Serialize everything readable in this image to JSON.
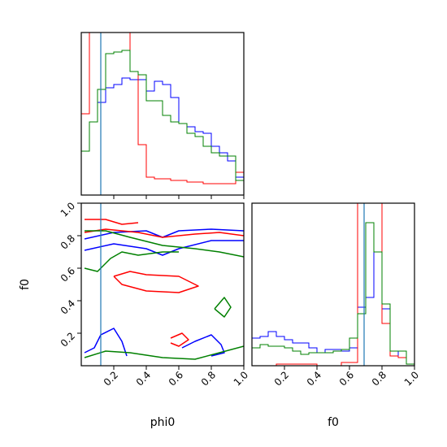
{
  "chart_data": {
    "type": "corner",
    "parameters": [
      "phi0",
      "f0"
    ],
    "xlabels": {
      "phi0": "phi0",
      "f0": "f0"
    },
    "ylabels": {
      "f0": "f0"
    },
    "axis_range": {
      "phi0": [
        0,
        1
      ],
      "f0": [
        0,
        1
      ]
    },
    "ticks": [
      0.2,
      0.4,
      0.6,
      0.8,
      1.0
    ],
    "tick_labels": [
      "0.2",
      "0.4",
      "0.6",
      "0.8",
      "1.0"
    ],
    "truth": {
      "phi0": 0.12,
      "f0": 0.69
    },
    "colors": {
      "blue": "#0000ff",
      "red": "#ff0000",
      "green": "#008000",
      "truth": "#1f77b4"
    },
    "hist_phi0": {
      "bin_edges": [
        0,
        0.05,
        0.1,
        0.15,
        0.2,
        0.25,
        0.3,
        0.35,
        0.4,
        0.45,
        0.5,
        0.55,
        0.6,
        0.65,
        0.7,
        0.75,
        0.8,
        0.85,
        0.9,
        0.95,
        1.0
      ],
      "series": [
        {
          "color": "blue",
          "values": [
            0.27,
            0.45,
            0.57,
            0.66,
            0.68,
            0.72,
            0.71,
            0.71,
            0.64,
            0.7,
            0.68,
            0.6,
            0.44,
            0.42,
            0.39,
            0.38,
            0.3,
            0.26,
            0.21,
            0.11
          ]
        },
        {
          "color": "red",
          "values": [
            0.5,
            1.05,
            1.05,
            1.05,
            1.05,
            1.05,
            0.76,
            0.31,
            0.11,
            0.1,
            0.1,
            0.09,
            0.09,
            0.08,
            0.08,
            0.07,
            0.07,
            0.07,
            0.07,
            0.14
          ]
        },
        {
          "color": "green",
          "values": [
            0.27,
            0.45,
            0.65,
            0.87,
            0.88,
            0.89,
            0.76,
            0.74,
            0.58,
            0.58,
            0.49,
            0.45,
            0.44,
            0.38,
            0.36,
            0.3,
            0.26,
            0.24,
            0.24,
            0.09
          ]
        }
      ]
    },
    "hist_f0": {
      "bin_edges": [
        0,
        0.05,
        0.1,
        0.15,
        0.2,
        0.25,
        0.3,
        0.35,
        0.4,
        0.45,
        0.5,
        0.55,
        0.6,
        0.65,
        0.7,
        0.75,
        0.8,
        0.85,
        0.9,
        0.95,
        1.0
      ],
      "series": [
        {
          "color": "blue",
          "values": [
            0.17,
            0.18,
            0.21,
            0.18,
            0.16,
            0.14,
            0.14,
            0.11,
            0.08,
            0.1,
            0.1,
            0.09,
            0.11,
            0.36,
            0.42,
            0.7,
            0.35,
            0.09,
            0.05,
            0.01
          ]
        },
        {
          "color": "red",
          "values": [
            0.0,
            0.0,
            0.0,
            0.01,
            0.01,
            0.01,
            0.01,
            0.01,
            0.0,
            0.0,
            0.0,
            0.02,
            0.02,
            1.0,
            1.0,
            1.0,
            0.26,
            0.06,
            0.05,
            0.01
          ]
        },
        {
          "color": "green",
          "values": [
            0.11,
            0.13,
            0.12,
            0.12,
            0.11,
            0.09,
            0.07,
            0.08,
            0.08,
            0.08,
            0.09,
            0.1,
            0.17,
            0.32,
            0.88,
            0.7,
            0.38,
            0.09,
            0.09,
            0.01
          ]
        }
      ]
    },
    "contours_phi0_f0": [
      {
        "color": "blue",
        "points": [
          [
            0.02,
            0.78
          ],
          [
            0.2,
            0.82
          ],
          [
            0.4,
            0.83
          ],
          [
            0.5,
            0.79
          ],
          [
            0.6,
            0.83
          ],
          [
            0.8,
            0.84
          ],
          [
            1.0,
            0.83
          ]
        ]
      },
      {
        "color": "blue",
        "points": [
          [
            0.02,
            0.71
          ],
          [
            0.2,
            0.75
          ],
          [
            0.4,
            0.72
          ],
          [
            0.5,
            0.68
          ],
          [
            0.6,
            0.72
          ],
          [
            0.8,
            0.77
          ],
          [
            1.0,
            0.77
          ]
        ]
      },
      {
        "color": "blue",
        "points": [
          [
            0.28,
            0.06
          ],
          [
            0.25,
            0.15
          ],
          [
            0.2,
            0.23
          ],
          [
            0.12,
            0.19
          ],
          [
            0.08,
            0.11
          ],
          [
            0.02,
            0.08
          ]
        ]
      },
      {
        "color": "blue",
        "points": [
          [
            0.62,
            0.11
          ],
          [
            0.7,
            0.15
          ],
          [
            0.8,
            0.19
          ],
          [
            0.86,
            0.13
          ],
          [
            0.88,
            0.08
          ],
          [
            0.8,
            0.06
          ]
        ]
      },
      {
        "color": "red",
        "points": [
          [
            0.02,
            0.9
          ],
          [
            0.15,
            0.9
          ],
          [
            0.25,
            0.87
          ],
          [
            0.35,
            0.88
          ]
        ]
      },
      {
        "color": "red",
        "points": [
          [
            0.02,
            0.82
          ],
          [
            0.15,
            0.84
          ],
          [
            0.35,
            0.82
          ],
          [
            0.5,
            0.79
          ],
          [
            0.7,
            0.81
          ],
          [
            0.85,
            0.82
          ],
          [
            1.0,
            0.8
          ]
        ]
      },
      {
        "color": "red",
        "points": [
          [
            0.2,
            0.55
          ],
          [
            0.3,
            0.58
          ],
          [
            0.4,
            0.56
          ],
          [
            0.6,
            0.55
          ],
          [
            0.72,
            0.49
          ],
          [
            0.6,
            0.45
          ],
          [
            0.4,
            0.46
          ],
          [
            0.25,
            0.5
          ],
          [
            0.2,
            0.55
          ]
        ]
      },
      {
        "color": "red",
        "points": [
          [
            0.55,
            0.17
          ],
          [
            0.62,
            0.2
          ],
          [
            0.66,
            0.16
          ],
          [
            0.6,
            0.12
          ],
          [
            0.55,
            0.14
          ]
        ]
      },
      {
        "color": "green",
        "points": [
          [
            0.02,
            0.83
          ],
          [
            0.15,
            0.83
          ],
          [
            0.3,
            0.79
          ],
          [
            0.5,
            0.74
          ],
          [
            0.7,
            0.72
          ],
          [
            0.85,
            0.7
          ],
          [
            1.0,
            0.67
          ]
        ]
      },
      {
        "color": "green",
        "points": [
          [
            0.02,
            0.6
          ],
          [
            0.1,
            0.58
          ],
          [
            0.18,
            0.66
          ],
          [
            0.25,
            0.7
          ],
          [
            0.35,
            0.68
          ],
          [
            0.5,
            0.7
          ],
          [
            0.6,
            0.7
          ]
        ]
      },
      {
        "color": "green",
        "points": [
          [
            0.02,
            0.05
          ],
          [
            0.15,
            0.09
          ],
          [
            0.3,
            0.08
          ],
          [
            0.5,
            0.05
          ],
          [
            0.7,
            0.04
          ],
          [
            0.85,
            0.08
          ],
          [
            1.0,
            0.12
          ]
        ]
      },
      {
        "color": "green",
        "points": [
          [
            0.82,
            0.35
          ],
          [
            0.88,
            0.42
          ],
          [
            0.92,
            0.36
          ],
          [
            0.88,
            0.3
          ],
          [
            0.82,
            0.35
          ]
        ]
      }
    ]
  }
}
